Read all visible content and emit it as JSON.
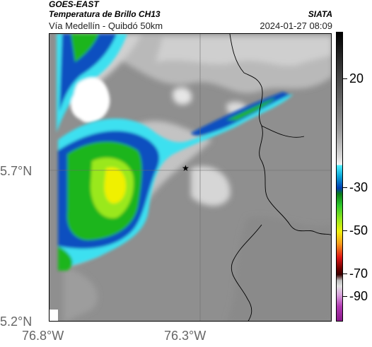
{
  "header": {
    "satellite": "GOES-EAST",
    "product": "Temperatura de Brillo CH13",
    "brand": "SIATA",
    "route": "Vía Medellín - Quibdó 50km",
    "datetime": "2024-01-27 08:09"
  },
  "axes": {
    "lat_labels": [
      "5.7°N",
      "5.2°N"
    ],
    "lon_labels": [
      "76.8°W",
      "76.3°W"
    ]
  },
  "colorbar": {
    "tick_labels": [
      "20",
      "-30",
      "-50",
      "-70",
      "-90"
    ],
    "units_scale": [
      20,
      -30,
      -50,
      -70,
      -90
    ]
  },
  "map": {
    "marker": "star-icon",
    "colors": {
      "background_gray": "#8f8f8f",
      "light_gray": "#cfcfcf",
      "cyan": "#3ee0f0",
      "blue": "#0a4fc0",
      "green": "#1fb51f",
      "yellow": "#f0f000",
      "border_line": "#000000"
    }
  }
}
